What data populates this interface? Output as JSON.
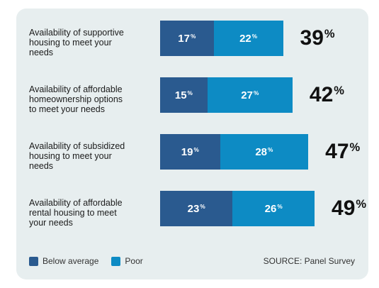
{
  "chart_data": {
    "type": "bar",
    "stacked": true,
    "orientation": "horizontal",
    "categories": [
      "Availability of supportive housing to meet your needs",
      "Availability of affordable homeownership options to meet your needs",
      "Availability of subsidized housing to meet your needs",
      "Availability of affordable rental housing to meet your needs"
    ],
    "category_lines": [
      [
        "Availability of supportive",
        "housing to meet your",
        "needs"
      ],
      [
        "Availability of affordable",
        "homeownership options",
        "to meet your needs"
      ],
      [
        "Availability of subsidized",
        "housing to meet your",
        "needs"
      ],
      [
        "Availability of affordable",
        "rental housing to meet",
        "your needs"
      ]
    ],
    "series": [
      {
        "name": "Below average",
        "values": [
          17,
          15,
          19,
          23
        ],
        "color": "#2a5a8f"
      },
      {
        "name": "Poor",
        "values": [
          22,
          27,
          28,
          26
        ],
        "color": "#0d8bc4"
      }
    ],
    "totals": [
      39,
      42,
      47,
      49
    ],
    "value_suffix": "%",
    "legend_position": "bottom-left",
    "source": "SOURCE: Panel Survey"
  }
}
